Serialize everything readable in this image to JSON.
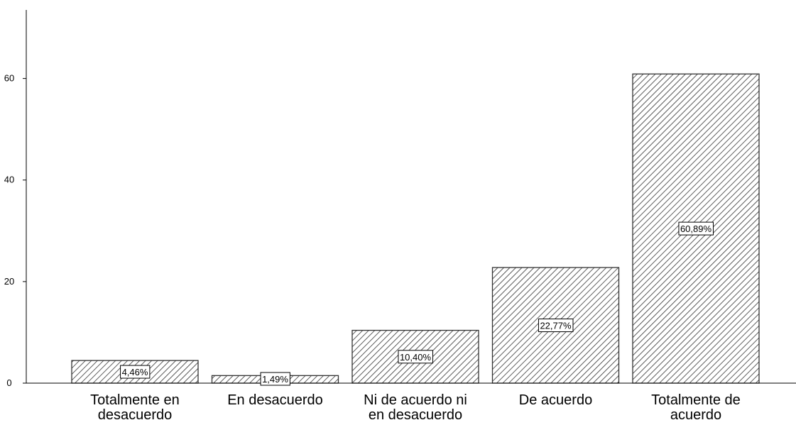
{
  "chart_data": {
    "type": "bar",
    "categories": [
      [
        "Totalmente en",
        "desacuerdo"
      ],
      [
        "En desacuerdo"
      ],
      [
        "Ni de acuerdo ni",
        "en desacuerdo"
      ],
      [
        "De acuerdo"
      ],
      [
        "Totalmente de",
        "acuerdo"
      ]
    ],
    "values": [
      4.46,
      1.49,
      10.4,
      22.77,
      60.89
    ],
    "data_labels": [
      "4,46%",
      "1,49%",
      "10,40%",
      "22,77%",
      "60,89%"
    ],
    "y_ticks": [
      0,
      20,
      40,
      60
    ],
    "ylim": [
      0,
      73.5
    ],
    "bar_fill": "hatched",
    "colors": {
      "bar_stroke": "#333333",
      "hatch": "#333333",
      "axis": "#000000",
      "background": "#ffffff"
    },
    "grid": false
  }
}
